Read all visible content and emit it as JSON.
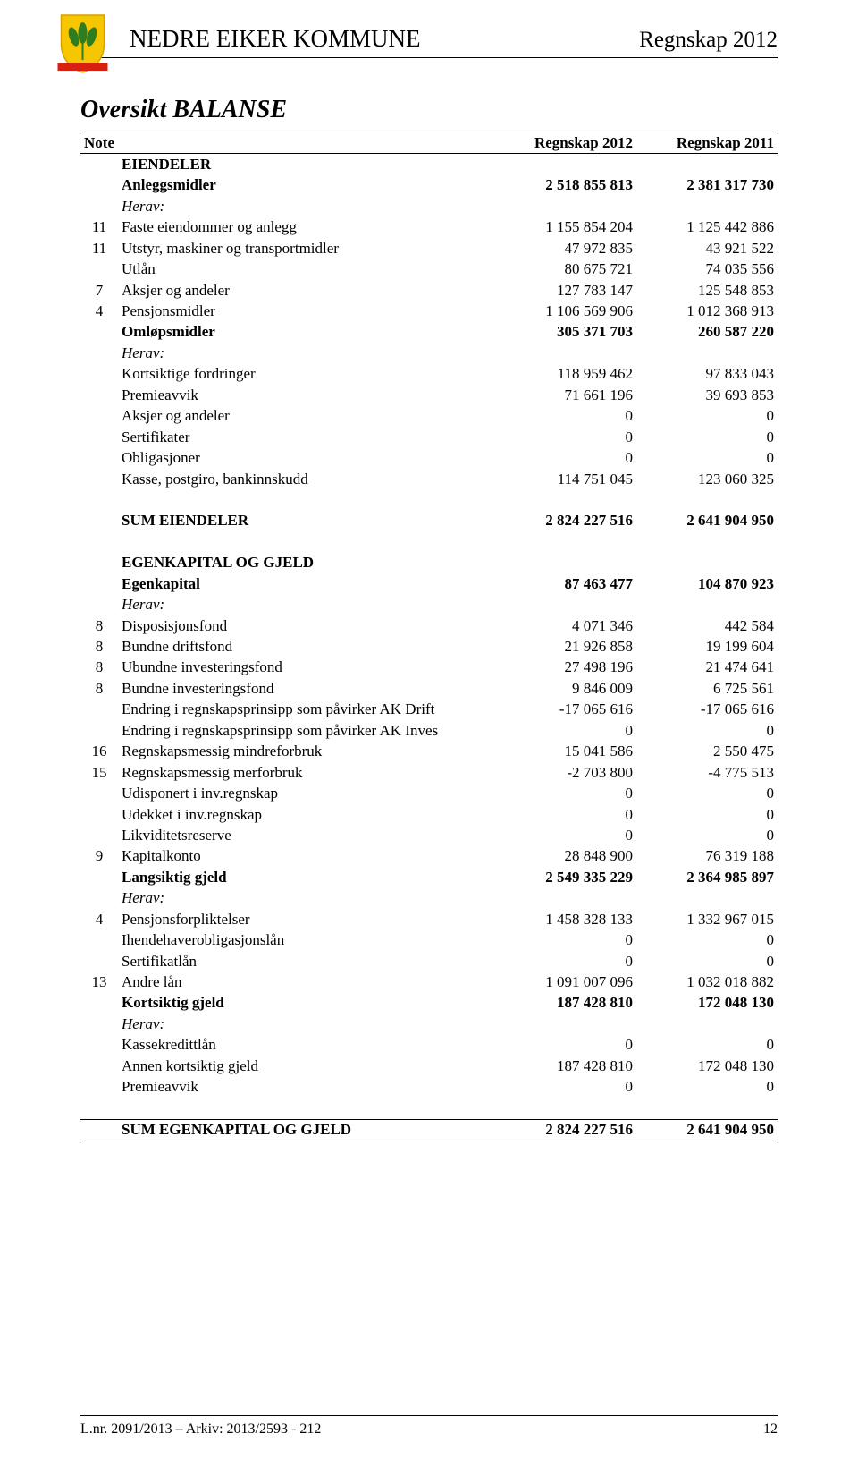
{
  "header": {
    "title": "NEDRE EIKER KOMMUNE",
    "right": "Regnskap 2012",
    "crest": {
      "shield_fill": "#f6c700",
      "shield_stroke": "#d6a100",
      "leaf_fill": "#2f7d1f",
      "band_fill": "#d82010"
    }
  },
  "title": "Oversikt BALANSE",
  "columns": {
    "note": "Note",
    "c2012": "Regnskap 2012",
    "c2011": "Regnskap 2011"
  },
  "rows": [
    {
      "style": "head",
      "note": "Note",
      "label": "",
      "c2012": "Regnskap 2012",
      "c2011": "Regnskap 2011"
    },
    {
      "style": "bold",
      "note": "",
      "label": "EIENDELER",
      "c2012": "",
      "c2011": ""
    },
    {
      "style": "bold",
      "note": "",
      "label": "Anleggsmidler",
      "c2012": "2 518 855 813",
      "c2011": "2 381 317 730"
    },
    {
      "style": "ital",
      "note": "",
      "label": "Herav:",
      "c2012": "",
      "c2011": ""
    },
    {
      "style": "",
      "note": "11",
      "label": "Faste eiendommer og anlegg",
      "c2012": "1 155 854 204",
      "c2011": "1 125 442 886"
    },
    {
      "style": "",
      "note": "11",
      "label": "Utstyr, maskiner og transportmidler",
      "c2012": "47 972 835",
      "c2011": "43 921 522"
    },
    {
      "style": "",
      "note": "",
      "label": "Utlån",
      "c2012": "80 675 721",
      "c2011": "74 035 556"
    },
    {
      "style": "",
      "note": "7",
      "label": "Aksjer og andeler",
      "c2012": "127 783 147",
      "c2011": "125 548 853"
    },
    {
      "style": "",
      "note": "4",
      "label": "Pensjonsmidler",
      "c2012": "1 106 569 906",
      "c2011": "1 012 368 913"
    },
    {
      "style": "bold",
      "note": "",
      "label": "Omløpsmidler",
      "c2012": "305 371 703",
      "c2011": "260 587 220"
    },
    {
      "style": "ital",
      "note": "",
      "label": "Herav:",
      "c2012": "",
      "c2011": ""
    },
    {
      "style": "",
      "note": "",
      "label": "Kortsiktige fordringer",
      "c2012": "118 959 462",
      "c2011": "97 833 043"
    },
    {
      "style": "",
      "note": "",
      "label": "Premieavvik",
      "c2012": "71 661 196",
      "c2011": "39 693 853"
    },
    {
      "style": "",
      "note": "",
      "label": "Aksjer og andeler",
      "c2012": "0",
      "c2011": "0"
    },
    {
      "style": "",
      "note": "",
      "label": "Sertifikater",
      "c2012": "0",
      "c2011": "0"
    },
    {
      "style": "",
      "note": "",
      "label": "Obligasjoner",
      "c2012": "0",
      "c2011": "0"
    },
    {
      "style": "",
      "note": "",
      "label": "Kasse, postgiro, bankinnskudd",
      "c2012": "114 751 045",
      "c2011": "123 060 325"
    },
    {
      "style": "spacer"
    },
    {
      "style": "bold",
      "note": "",
      "label": "SUM EIENDELER",
      "c2012": "2 824 227 516",
      "c2011": "2 641 904 950"
    },
    {
      "style": "spacer"
    },
    {
      "style": "bold",
      "note": "",
      "label": "EGENKAPITAL OG GJELD",
      "c2012": "",
      "c2011": ""
    },
    {
      "style": "bold",
      "note": "",
      "label": "Egenkapital",
      "c2012": "87 463 477",
      "c2011": "104 870 923"
    },
    {
      "style": "ital",
      "note": "",
      "label": "Herav:",
      "c2012": "",
      "c2011": ""
    },
    {
      "style": "",
      "note": "8",
      "label": "Disposisjonsfond",
      "c2012": "4 071 346",
      "c2011": "442 584"
    },
    {
      "style": "",
      "note": "8",
      "label": "Bundne driftsfond",
      "c2012": "21 926 858",
      "c2011": "19 199 604"
    },
    {
      "style": "",
      "note": "8",
      "label": "Ubundne investeringsfond",
      "c2012": "27 498 196",
      "c2011": "21 474 641"
    },
    {
      "style": "",
      "note": "8",
      "label": "Bundne investeringsfond",
      "c2012": "9 846 009",
      "c2011": "6 725 561"
    },
    {
      "style": "",
      "note": "",
      "label": "Endring i regnskapsprinsipp som påvirker AK Drift",
      "c2012": "-17 065 616",
      "c2011": "-17 065 616"
    },
    {
      "style": "",
      "note": "",
      "label": "Endring i regnskapsprinsipp som påvirker AK Inves",
      "c2012": "0",
      "c2011": "0"
    },
    {
      "style": "",
      "note": "16",
      "label": "Regnskapsmessig mindreforbruk",
      "c2012": "15 041 586",
      "c2011": "2 550 475"
    },
    {
      "style": "",
      "note": "15",
      "label": "Regnskapsmessig merforbruk",
      "c2012": "-2 703 800",
      "c2011": "-4 775 513"
    },
    {
      "style": "",
      "note": "",
      "label": "Udisponert i inv.regnskap",
      "c2012": "0",
      "c2011": "0"
    },
    {
      "style": "",
      "note": "",
      "label": "Udekket i inv.regnskap",
      "c2012": "0",
      "c2011": "0"
    },
    {
      "style": "",
      "note": "",
      "label": "Likviditetsreserve",
      "c2012": "0",
      "c2011": "0"
    },
    {
      "style": "",
      "note": "9",
      "label": "Kapitalkonto",
      "c2012": "28 848 900",
      "c2011": "76 319 188"
    },
    {
      "style": "bold",
      "note": "",
      "label": "Langsiktig gjeld",
      "c2012": "2 549 335 229",
      "c2011": "2 364 985 897"
    },
    {
      "style": "ital",
      "note": "",
      "label": "Herav:",
      "c2012": "",
      "c2011": ""
    },
    {
      "style": "",
      "note": "4",
      "label": "Pensjonsforpliktelser",
      "c2012": "1 458 328 133",
      "c2011": "1 332 967 015"
    },
    {
      "style": "",
      "note": "",
      "label": "Ihendehaverobligasjonslån",
      "c2012": "0",
      "c2011": "0"
    },
    {
      "style": "",
      "note": "",
      "label": "Sertifikatlån",
      "c2012": "0",
      "c2011": "0"
    },
    {
      "style": "",
      "note": "13",
      "label": "Andre lån",
      "c2012": "1 091 007 096",
      "c2011": "1 032 018 882"
    },
    {
      "style": "bold",
      "note": "",
      "label": "Kortsiktig gjeld",
      "c2012": "187 428 810",
      "c2011": "172 048 130"
    },
    {
      "style": "ital",
      "note": "",
      "label": "Herav:",
      "c2012": "",
      "c2011": ""
    },
    {
      "style": "",
      "note": "",
      "label": "Kassekredittlån",
      "c2012": "0",
      "c2011": "0"
    },
    {
      "style": "",
      "note": "",
      "label": "Annen kortsiktig gjeld",
      "c2012": "187 428 810",
      "c2011": "172 048 130"
    },
    {
      "style": "",
      "note": "",
      "label": "Premieavvik",
      "c2012": "0",
      "c2011": "0"
    },
    {
      "style": "spacer"
    },
    {
      "style": "sum-top"
    },
    {
      "style": "bold",
      "note": "",
      "label": "SUM EGENKAPITAL OG GJELD",
      "c2012": "2 824 227 516",
      "c2011": "2 641 904 950"
    },
    {
      "style": "sum-bottom"
    }
  ],
  "footer": {
    "left": "L.nr. 2091/2013 – Arkiv: 2013/2593 - 212",
    "page": "12"
  }
}
